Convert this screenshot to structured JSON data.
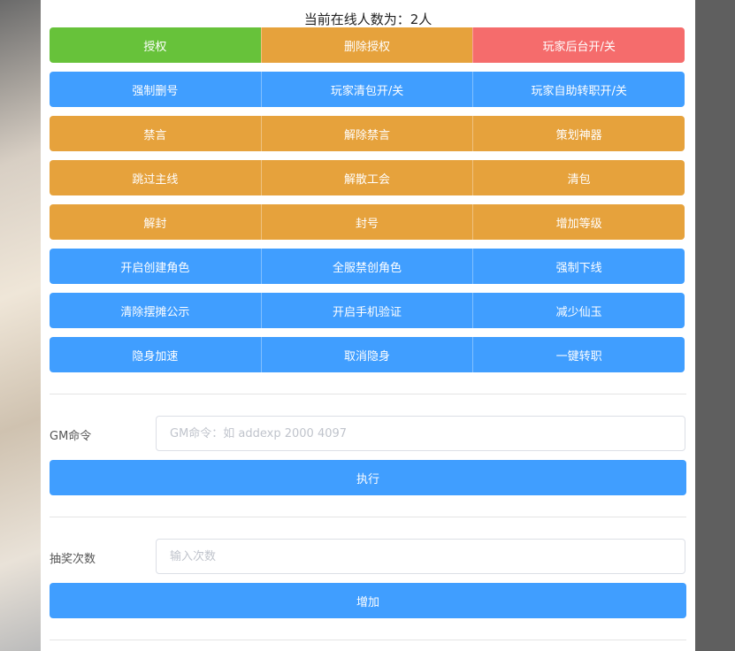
{
  "title": "当前在线人数为：2人",
  "colors": {
    "green": "#67c23a",
    "orange": "#e6a23c",
    "red": "#f56c6c",
    "blue": "#409eff"
  },
  "rows": [
    [
      {
        "label": "授权",
        "color": "#67c23a"
      },
      {
        "label": "删除授权",
        "color": "#e6a23c"
      },
      {
        "label": "玩家后台开/关",
        "color": "#f56c6c"
      }
    ],
    [
      {
        "label": "强制删号",
        "color": "#409eff"
      },
      {
        "label": "玩家清包开/关",
        "color": "#409eff"
      },
      {
        "label": "玩家自助转职开/关",
        "color": "#409eff"
      }
    ],
    [
      {
        "label": "禁言",
        "color": "#e6a23c"
      },
      {
        "label": "解除禁言",
        "color": "#e6a23c"
      },
      {
        "label": "策划神器",
        "color": "#e6a23c"
      }
    ],
    [
      {
        "label": "跳过主线",
        "color": "#e6a23c"
      },
      {
        "label": "解散工会",
        "color": "#e6a23c"
      },
      {
        "label": "清包",
        "color": "#e6a23c"
      }
    ],
    [
      {
        "label": "解封",
        "color": "#e6a23c"
      },
      {
        "label": "封号",
        "color": "#e6a23c"
      },
      {
        "label": "增加等级",
        "color": "#e6a23c"
      }
    ],
    [
      {
        "label": "开启创建角色",
        "color": "#409eff"
      },
      {
        "label": "全服禁创角色",
        "color": "#409eff"
      },
      {
        "label": "强制下线",
        "color": "#409eff"
      }
    ],
    [
      {
        "label": "清除摆摊公示",
        "color": "#409eff"
      },
      {
        "label": "开启手机验证",
        "color": "#409eff"
      },
      {
        "label": "减少仙玉",
        "color": "#409eff"
      }
    ],
    [
      {
        "label": "隐身加速",
        "color": "#409eff"
      },
      {
        "label": "取消隐身",
        "color": "#409eff"
      },
      {
        "label": "一键转职",
        "color": "#409eff"
      }
    ]
  ],
  "gm": {
    "label": "GM命令",
    "placeholder": "GM命令：如 addexp 2000 4097",
    "button": "执行"
  },
  "lottery": {
    "label": "抽奖次数",
    "placeholder": "输入次数",
    "button": "增加"
  }
}
